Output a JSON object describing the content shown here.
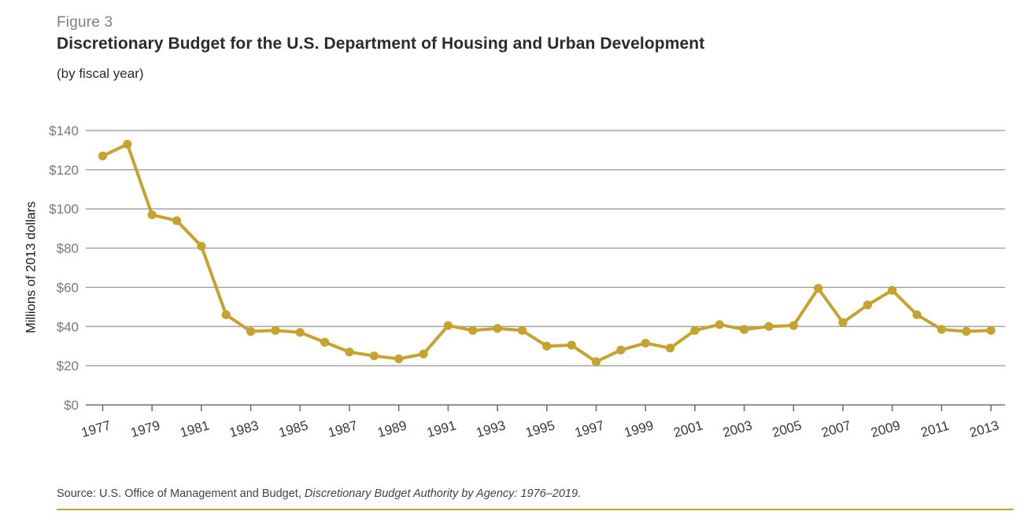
{
  "figure": {
    "label": "Figure 3",
    "title": "Discretionary Budget for the U.S. Department of Housing and Urban Development",
    "subtitle": "(by fiscal year)"
  },
  "source": {
    "prefix": "Source: U.S. Office of Management and Budget, ",
    "citation_italic": "Discretionary Budget Authority by Agency: 1976–2019."
  },
  "colors": {
    "accent_gold": "#C6A22E",
    "grid_gray": "#919396",
    "axis_gray": "#6D6E71",
    "y_tick_label_gray": "#77787B",
    "x_tick_label_dark": "#3A3A3C",
    "figure_label_gray": "#808184",
    "title_black": "#2B2B2D"
  },
  "chart_data": {
    "type": "line",
    "title": "Discretionary Budget for the U.S. Department of Housing and Urban Development",
    "subtitle": "(by fiscal year)",
    "xlabel": "",
    "ylabel": "Millions of 2013 dollars",
    "ylim": [
      0,
      140
    ],
    "yticks": [
      0,
      20,
      40,
      60,
      80,
      100,
      120,
      140
    ],
    "ytick_prefix": "$",
    "xticks": [
      1977,
      1979,
      1981,
      1983,
      1985,
      1987,
      1989,
      1991,
      1993,
      1995,
      1997,
      1999,
      2001,
      2003,
      2005,
      2007,
      2009,
      2011,
      2013
    ],
    "x": [
      1977,
      1978,
      1979,
      1980,
      1981,
      1982,
      1983,
      1984,
      1985,
      1986,
      1987,
      1988,
      1989,
      1990,
      1991,
      1992,
      1993,
      1994,
      1995,
      1996,
      1997,
      1998,
      1999,
      2000,
      2001,
      2002,
      2003,
      2004,
      2005,
      2006,
      2007,
      2008,
      2009,
      2010,
      2011,
      2012,
      2013
    ],
    "values": [
      127,
      133,
      97,
      94,
      81,
      46,
      37.5,
      38,
      37,
      32,
      27,
      25,
      23.5,
      26,
      40.5,
      38,
      39,
      38,
      30,
      30.5,
      22,
      28,
      31.5,
      29,
      38,
      41,
      38.5,
      40,
      40.5,
      59.5,
      42,
      51,
      58.5,
      46,
      38.5,
      37.5,
      38
    ],
    "grid": "horizontal-only",
    "legend": "none",
    "marker": "filled-circle"
  }
}
